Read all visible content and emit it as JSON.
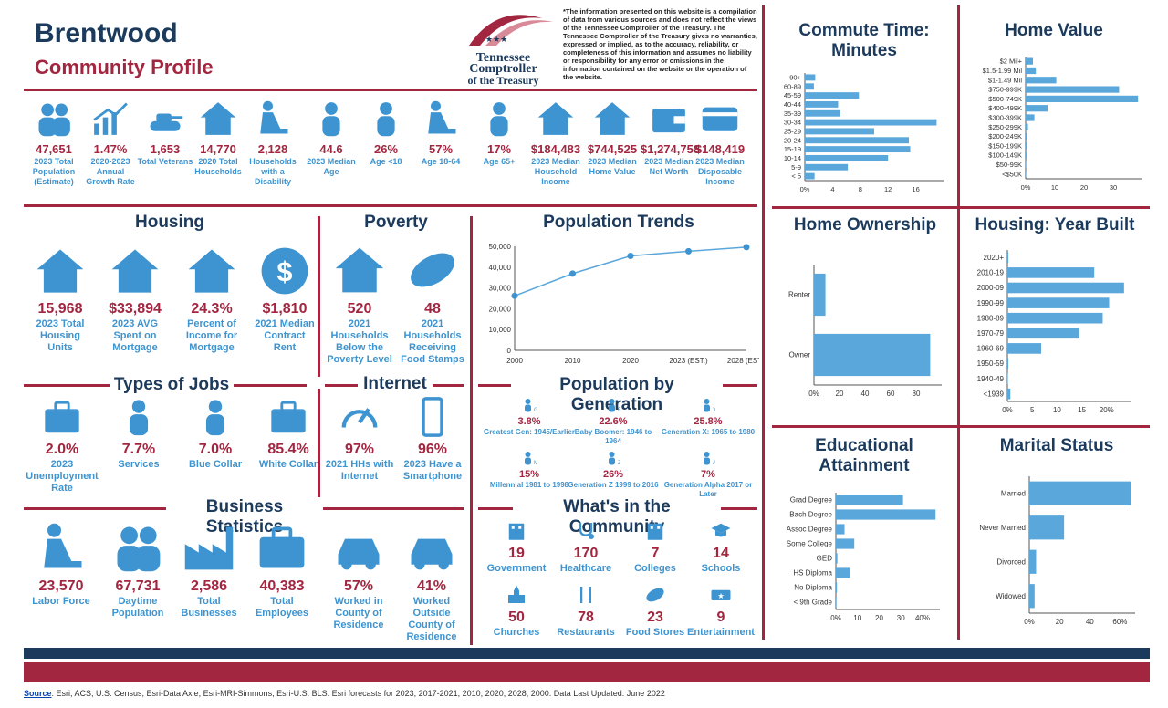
{
  "header": {
    "city": "Brentwood",
    "subtitle": "Community Profile",
    "logo_line1": "Tennessee",
    "logo_line2": "Comptroller",
    "logo_line3": "of the Treasury",
    "disclaimer": "*The information presented on this website is a compilation of data from various sources and does not reflect the views of the Tennessee Comptroller of the Treasury. The Tennessee Comptroller of the Treasury gives no warranties, expressed or implied, as to the accuracy, reliability, or completeness of this information and assumes no liability or responsibility for any error or omissions in the information contained on the website or the operation of the website."
  },
  "top_stats": [
    {
      "icon": "population-icon",
      "value": "47,651",
      "label": "2023 Total Population (Estimate)"
    },
    {
      "icon": "growth-chart-icon",
      "value": "1.47%",
      "label": "2020-2023 Annual Growth Rate"
    },
    {
      "icon": "tank-icon",
      "value": "1,653",
      "label": "Total Veterans"
    },
    {
      "icon": "household-icon",
      "value": "14,770",
      "label": "2020 Total Households"
    },
    {
      "icon": "disability-icon",
      "value": "2,128",
      "label": "Households with a Disability"
    },
    {
      "icon": "person-icon",
      "value": "44.6",
      "label": "2023 Median Age"
    },
    {
      "icon": "person-icon",
      "value": "26%",
      "label": "Age <18"
    },
    {
      "icon": "worker-icon",
      "value": "57%",
      "label": "Age 18-64"
    },
    {
      "icon": "senior-icon",
      "value": "17%",
      "label": "Age 65+"
    },
    {
      "icon": "house-coins-icon",
      "value": "$184,483",
      "label": "2023 Median Household Income"
    },
    {
      "icon": "house-dollar-icon",
      "value": "$744,525",
      "label": "2023 Median Home Value"
    },
    {
      "icon": "wallet-icon",
      "value": "$1,274,758",
      "label": "2023 Median Net Worth"
    },
    {
      "icon": "credit-card-icon",
      "value": "$148,419",
      "label": "2023 Median Disposable Income"
    }
  ],
  "housing": {
    "title": "Housing",
    "items": [
      {
        "icon": "house-icon",
        "value": "15,968",
        "label": "2023 Total Housing Units"
      },
      {
        "icon": "mortgage-house-icon",
        "value": "$33,894",
        "label": "2023 AVG Spent on Mortgage"
      },
      {
        "icon": "percent-house-icon",
        "value": "24.3%",
        "label": "Percent of Income for Mortgage"
      },
      {
        "icon": "dollar-coin-icon",
        "value": "$1,810",
        "label": "2021 Median Contract Rent"
      }
    ]
  },
  "poverty": {
    "title": "Poverty",
    "items": [
      {
        "icon": "family-house-icon",
        "value": "520",
        "label": "2021 Households Below the Poverty Level"
      },
      {
        "icon": "hand-food-icon",
        "value": "48",
        "label": "2021 Households Receiving Food Stamps"
      }
    ]
  },
  "jobs": {
    "title": "Types of Jobs",
    "items": [
      {
        "icon": "unemployment-icon",
        "value": "2.0%",
        "label": "2023 Unemployment Rate"
      },
      {
        "icon": "services-icon",
        "value": "7.7%",
        "label": "Services"
      },
      {
        "icon": "blue-collar-icon",
        "value": "7.0%",
        "label": "Blue Collar"
      },
      {
        "icon": "white-collar-icon",
        "value": "85.4%",
        "label": "White Collar"
      }
    ]
  },
  "internet": {
    "title": "Internet",
    "items": [
      {
        "icon": "speedometer-icon",
        "value": "97%",
        "label": "2021 HHs with Internet"
      },
      {
        "icon": "smartphone-icon",
        "value": "96%",
        "label": "2023 Have a Smartphone"
      }
    ]
  },
  "business": {
    "title": "Business Statistics",
    "items": [
      {
        "icon": "labor-icon",
        "value": "23,570",
        "label": "Labor Force"
      },
      {
        "icon": "people-icon",
        "value": "67,731",
        "label": "Daytime Population"
      },
      {
        "icon": "factory-icon",
        "value": "2,586",
        "label": "Total Businesses"
      },
      {
        "icon": "briefcase-icon",
        "value": "40,383",
        "label": "Total Employees"
      },
      {
        "icon": "car-garage-icon",
        "value": "57%",
        "label": "Worked in County of Residence"
      },
      {
        "icon": "car-icon",
        "value": "41%",
        "label": "Worked Outside County of Residence"
      }
    ]
  },
  "generation": {
    "title": "Population by Generation",
    "items": [
      {
        "letter": "G",
        "value": "3.8%",
        "label": "Greatest Gen: 1945/Earlier"
      },
      {
        "letter": "B",
        "value": "22.6%",
        "label": "Baby Boomer: 1946 to 1964"
      },
      {
        "letter": "X",
        "value": "25.8%",
        "label": "Generation X: 1965 to 1980"
      },
      {
        "letter": "M",
        "value": "15%",
        "label": "Millennial   1981 to 1998"
      },
      {
        "letter": "Z",
        "value": "26%",
        "label": "Generation Z 1999 to 2016"
      },
      {
        "letter": "A",
        "value": "7%",
        "label": "Generation Alpha 2017 or Later"
      }
    ]
  },
  "community": {
    "title": "What's in the Community",
    "items": [
      {
        "icon": "government-icon",
        "value": "19",
        "label": "Government"
      },
      {
        "icon": "stethoscope-icon",
        "value": "170",
        "label": "Healthcare"
      },
      {
        "icon": "college-icon",
        "value": "7",
        "label": "Colleges"
      },
      {
        "icon": "graduation-cap-icon",
        "value": "14",
        "label": "Schools"
      },
      {
        "icon": "church-icon",
        "value": "50",
        "label": "Churches"
      },
      {
        "icon": "fork-knife-icon",
        "value": "78",
        "label": "Restaurants"
      },
      {
        "icon": "bread-icon",
        "value": "23",
        "label": "Food Stores"
      },
      {
        "icon": "ticket-icon",
        "value": "9",
        "label": "Entertainment"
      }
    ]
  },
  "footer": {
    "source_label": "Source",
    "source_text": ": Esri, ACS, U.S. Census, Esri-Data Axle, Esri-MRI-Simmons, Esri-U.S. BLS. Esri forecasts for 2023, 2017-2021, 2010, 2020, 2028, 2000. Data Last Updated: June 2022"
  },
  "colors": {
    "navy": "#1b3a5c",
    "red": "#a32640",
    "blue": "#3e94d0",
    "bar": "#5aa7db"
  },
  "chart_data": [
    {
      "id": "population-trends",
      "type": "line",
      "title": "Population Trends",
      "categories": [
        "2000",
        "2010",
        "2020",
        "2023 (EST.)",
        "2028 (EST.)"
      ],
      "values": [
        26200,
        36900,
        45400,
        47650,
        49600
      ],
      "ylim": [
        0,
        50000
      ],
      "yticks": [
        "0",
        "10,000",
        "20,000",
        "30,000",
        "40,000",
        "50,000"
      ],
      "grid": false
    },
    {
      "id": "commute-time",
      "type": "bar",
      "orientation": "horizontal",
      "title": "Commute Time: Minutes",
      "categories": [
        "90+",
        "60-89",
        "45-59",
        "40-44",
        "35-39",
        "30-34",
        "25-29",
        "20-24",
        "15-19",
        "10-14",
        "5-9",
        "< 5"
      ],
      "values": [
        1.5,
        1.3,
        7.8,
        4.8,
        5.1,
        19.0,
        10.0,
        15.0,
        15.2,
        12.0,
        6.2,
        1.4
      ],
      "xlim": [
        0,
        20
      ],
      "xticks": [
        "0%",
        "4",
        "8",
        "12",
        "16"
      ]
    },
    {
      "id": "home-value",
      "type": "bar",
      "orientation": "horizontal",
      "title": "Home Value",
      "categories": [
        "$2 Mil+",
        "$1.5-1.99 Mil",
        "$1-1.49 Mil",
        "$750-999K",
        "$500-749K",
        "$400-499K",
        "$300-399K",
        "$250-299K",
        "$200-249K",
        "$150-199K",
        "$100-149K",
        "$50-99K",
        "<$50K"
      ],
      "values": [
        2.5,
        3.5,
        10.5,
        32,
        38.5,
        7.5,
        3,
        0.8,
        0.5,
        0.4,
        0.3,
        0.2,
        0.2
      ],
      "xlim": [
        0,
        40
      ],
      "xticks": [
        "0%",
        "10",
        "20",
        "30"
      ]
    },
    {
      "id": "home-ownership",
      "type": "bar",
      "orientation": "horizontal",
      "title": "Home Ownership",
      "categories": [
        "Renter",
        "Owner"
      ],
      "values": [
        9,
        91
      ],
      "xlim": [
        0,
        100
      ],
      "xticks": [
        "0%",
        "20",
        "40",
        "60",
        "80"
      ]
    },
    {
      "id": "year-built",
      "type": "bar",
      "orientation": "horizontal",
      "title": "Housing: Year Built",
      "categories": [
        "2020+",
        "2010-19",
        "2000-09",
        "1990-99",
        "1980-89",
        "1970-79",
        "1960-69",
        "1950-59",
        "1940-49",
        "<1939"
      ],
      "values": [
        0.2,
        17.5,
        23.5,
        20.5,
        19.2,
        14.5,
        6.8,
        0.2,
        0.1,
        0.6
      ],
      "xlim": [
        0,
        25
      ],
      "xticks": [
        "0%",
        "5",
        "10",
        "15",
        "20%"
      ]
    },
    {
      "id": "education",
      "type": "bar",
      "orientation": "horizontal",
      "title": "Educational Attainment",
      "categories": [
        "Grad Degree",
        "Bach Degree",
        "Assoc Degree",
        "Some College",
        "GED",
        "HS Diploma",
        "No Diploma",
        "< 9th Grade"
      ],
      "values": [
        31,
        46,
        4,
        8.5,
        0.7,
        6.5,
        0.5,
        0.3
      ],
      "xlim": [
        0,
        48
      ],
      "xticks": [
        "0%",
        "10",
        "20",
        "30",
        "40%"
      ]
    },
    {
      "id": "marital-status",
      "type": "bar",
      "orientation": "horizontal",
      "title": "Marital Status",
      "categories": [
        "Married",
        "Never Married",
        "Divorced",
        "Widowed"
      ],
      "values": [
        67,
        23,
        4.5,
        3.5
      ],
      "xlim": [
        0,
        70
      ],
      "xticks": [
        "0%",
        "20",
        "40",
        "60%"
      ]
    }
  ]
}
